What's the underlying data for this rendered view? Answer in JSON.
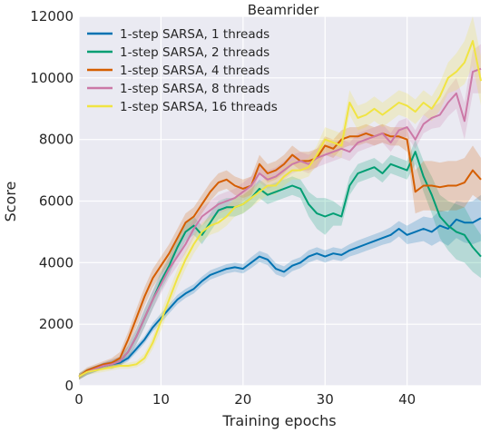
{
  "chart_data": {
    "type": "line",
    "title": "Beamrider",
    "xlabel": "Training epochs",
    "ylabel": "Score",
    "xlim": [
      0,
      49
    ],
    "ylim": [
      0,
      12000
    ],
    "xticks": [
      0,
      10,
      20,
      30,
      40
    ],
    "yticks": [
      0,
      2000,
      4000,
      6000,
      8000,
      10000,
      12000
    ],
    "grid": true,
    "legend_position": "top-left",
    "background": "#eaeaf2",
    "x": [
      0,
      1,
      2,
      3,
      4,
      5,
      6,
      7,
      8,
      9,
      10,
      11,
      12,
      13,
      14,
      15,
      16,
      17,
      18,
      19,
      20,
      21,
      22,
      23,
      24,
      25,
      26,
      27,
      28,
      29,
      30,
      31,
      32,
      33,
      34,
      35,
      36,
      37,
      38,
      39,
      40,
      41,
      42,
      43,
      44,
      45,
      46,
      47,
      48,
      49
    ],
    "series": [
      {
        "name": "1-step SARSA, 1 threads",
        "color": "#0072b2",
        "values": [
          300,
          450,
          550,
          650,
          700,
          750,
          900,
          1200,
          1500,
          1900,
          2200,
          2500,
          2800,
          3000,
          3150,
          3400,
          3600,
          3700,
          3800,
          3850,
          3800,
          4000,
          4200,
          4100,
          3800,
          3700,
          3900,
          4000,
          4200,
          4300,
          4200,
          4300,
          4250,
          4400,
          4500,
          4600,
          4700,
          4800,
          4900,
          5100,
          4900,
          5000,
          5100,
          5000,
          5200,
          5100,
          5400,
          5300,
          5300,
          5450
        ],
        "band": [
          100,
          100,
          100,
          100,
          100,
          100,
          100,
          120,
          120,
          140,
          150,
          150,
          150,
          150,
          150,
          150,
          150,
          150,
          150,
          150,
          150,
          180,
          180,
          180,
          180,
          180,
          180,
          180,
          200,
          200,
          200,
          200,
          200,
          200,
          220,
          220,
          220,
          220,
          250,
          250,
          300,
          350,
          400,
          450,
          500,
          550,
          600,
          650,
          700,
          750
        ]
      },
      {
        "name": "1-step SARSA, 2 threads",
        "color": "#009e73",
        "values": [
          300,
          450,
          550,
          650,
          700,
          800,
          1100,
          1600,
          2200,
          2800,
          3400,
          3900,
          4500,
          5000,
          5200,
          4900,
          5300,
          5700,
          5800,
          5800,
          5900,
          6100,
          6400,
          6200,
          6300,
          6400,
          6500,
          6400,
          5900,
          5600,
          5500,
          5600,
          5500,
          6500,
          6900,
          7000,
          7100,
          6900,
          7200,
          7100,
          7000,
          7600,
          6800,
          6200,
          5500,
          5200,
          5000,
          4900,
          4500,
          4200
        ],
        "band": [
          100,
          100,
          100,
          100,
          150,
          150,
          200,
          250,
          300,
          300,
          300,
          300,
          300,
          300,
          300,
          300,
          300,
          300,
          300,
          300,
          300,
          300,
          300,
          300,
          300,
          300,
          300,
          300,
          400,
          500,
          600,
          400,
          300,
          300,
          300,
          300,
          300,
          300,
          300,
          300,
          300,
          400,
          500,
          600,
          700,
          800,
          900,
          900,
          800,
          700
        ]
      },
      {
        "name": "1-step SARSA, 4 threads",
        "color": "#d55e00",
        "values": [
          300,
          500,
          600,
          700,
          750,
          900,
          1500,
          2200,
          2900,
          3500,
          3900,
          4300,
          4800,
          5300,
          5500,
          5900,
          6300,
          6600,
          6700,
          6500,
          6400,
          6500,
          7200,
          6900,
          7000,
          7200,
          7500,
          7300,
          7300,
          7400,
          7800,
          7700,
          8000,
          8100,
          8100,
          8200,
          8100,
          8200,
          8100,
          8100,
          8000,
          6300,
          6500,
          6500,
          6450,
          6500,
          6500,
          6600,
          7000,
          6700
        ],
        "band": [
          100,
          100,
          100,
          100,
          150,
          200,
          250,
          300,
          300,
          300,
          300,
          300,
          300,
          300,
          300,
          300,
          300,
          300,
          300,
          300,
          300,
          300,
          300,
          300,
          300,
          300,
          300,
          300,
          300,
          300,
          300,
          300,
          300,
          300,
          300,
          300,
          300,
          300,
          300,
          300,
          400,
          700,
          800,
          800,
          800,
          800,
          800,
          800,
          800,
          700
        ]
      },
      {
        "name": "1-step SARSA, 8 threads",
        "color": "#cc79a7",
        "values": [
          300,
          450,
          550,
          650,
          700,
          800,
          1100,
          1600,
          2200,
          2800,
          3300,
          3800,
          4200,
          4600,
          5100,
          5500,
          5700,
          5900,
          6000,
          6100,
          6300,
          6500,
          6900,
          6700,
          6800,
          7000,
          7200,
          7300,
          7200,
          7400,
          7500,
          7600,
          7700,
          7600,
          7900,
          8000,
          8100,
          8200,
          7900,
          8300,
          8400,
          8000,
          8500,
          8700,
          8800,
          9200,
          9500,
          8600,
          10200,
          10300
        ],
        "band": [
          100,
          100,
          100,
          100,
          150,
          150,
          200,
          250,
          300,
          300,
          300,
          300,
          300,
          300,
          300,
          300,
          300,
          300,
          300,
          300,
          300,
          300,
          300,
          300,
          300,
          300,
          300,
          300,
          300,
          300,
          300,
          300,
          300,
          300,
          300,
          300,
          300,
          300,
          300,
          300,
          300,
          300,
          300,
          350,
          400,
          450,
          500,
          600,
          700,
          800
        ]
      },
      {
        "name": "1-step SARSA, 16 threads",
        "color": "#f0e442",
        "values": [
          300,
          450,
          500,
          550,
          600,
          650,
          650,
          700,
          900,
          1400,
          2100,
          2800,
          3500,
          4100,
          4600,
          5000,
          5200,
          5300,
          5500,
          5800,
          5900,
          6100,
          6300,
          6500,
          6500,
          6800,
          7000,
          7000,
          7100,
          7500,
          8000,
          7900,
          7800,
          9200,
          8700,
          8800,
          9000,
          8800,
          9000,
          9200,
          9100,
          8900,
          9200,
          9000,
          9400,
          10000,
          10200,
          10500,
          11200,
          9900
        ],
        "band": [
          100,
          100,
          100,
          100,
          100,
          100,
          100,
          100,
          150,
          200,
          300,
          300,
          300,
          300,
          300,
          300,
          300,
          300,
          300,
          300,
          300,
          300,
          300,
          300,
          300,
          300,
          300,
          300,
          300,
          300,
          400,
          400,
          400,
          400,
          400,
          400,
          400,
          400,
          400,
          400,
          400,
          400,
          400,
          400,
          450,
          500,
          600,
          700,
          800,
          800
        ]
      }
    ]
  }
}
